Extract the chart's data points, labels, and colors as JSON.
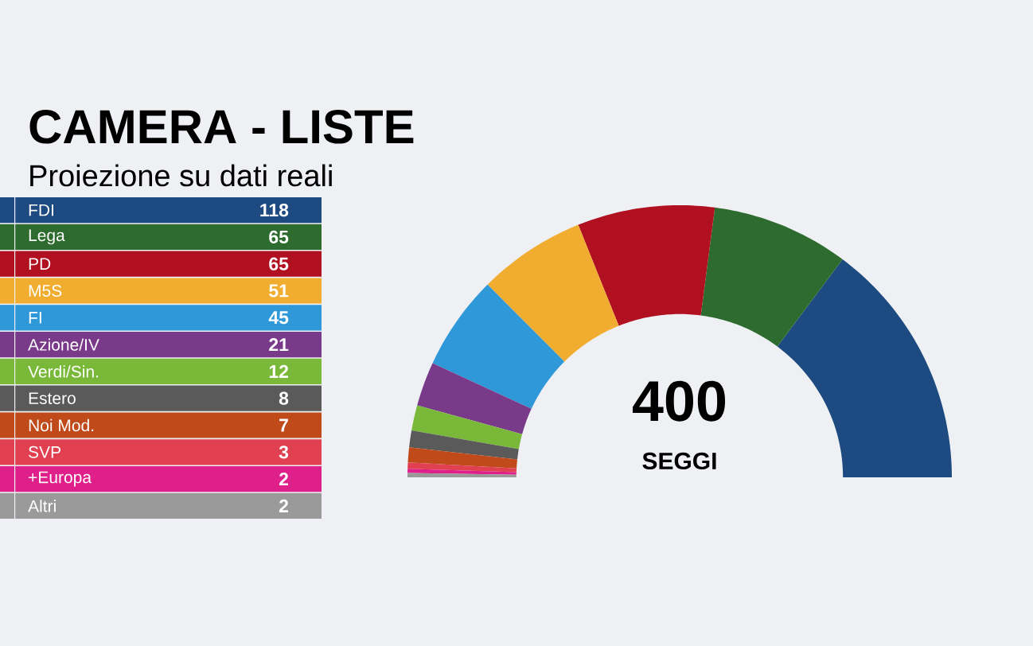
{
  "chart_data": {
    "type": "donut",
    "title": "CAMERA - LISTE",
    "subtitle": "Proiezione su dati reali",
    "categories": [
      "FDI",
      "Lega",
      "PD",
      "M5S",
      "FI",
      "Azione/IV",
      "Verdi/Sin.",
      "Estero",
      "Noi Mod.",
      "SVP",
      "+Europa",
      "Altri"
    ],
    "values": [
      118,
      65,
      65,
      51,
      45,
      21,
      12,
      8,
      7,
      3,
      2,
      2
    ],
    "colors": [
      "#1d4a80",
      "#2e6b2e",
      "#b01020",
      "#f0ad30",
      "#2e98d8",
      "#7a3a8a",
      "#7ab83a",
      "#5a5a5a",
      "#c04a1a",
      "#e04050",
      "#e0208a",
      "#9a9a9a"
    ],
    "legend": "left",
    "value_labels": [
      "118",
      "65",
      "65",
      "51",
      "45",
      "21",
      "12",
      "8",
      "7",
      "3",
      "2",
      "2"
    ],
    "annotations": [
      "400",
      "SEGGI"
    ]
  }
}
